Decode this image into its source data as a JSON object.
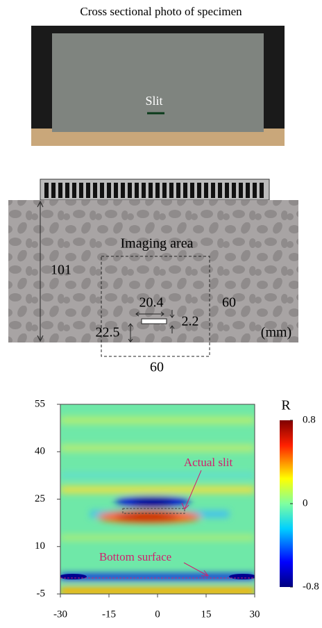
{
  "photo": {
    "caption": "Cross sectional photo of specimen",
    "slit_label": "Slit"
  },
  "diagram": {
    "imaging_area": "Imaging area",
    "height": "101",
    "width_right": "60",
    "slit_width": "20.4",
    "slit_height": "2.2",
    "slit_depth": "22.5",
    "unit": "(mm)",
    "width_bottom": "60"
  },
  "chart_data": {
    "type": "heatmap",
    "xlim": [
      -30,
      30
    ],
    "xticks": [
      -30,
      -15,
      0,
      15,
      30
    ],
    "ylim": [
      -5,
      55
    ],
    "yticks": [
      -5,
      10,
      25,
      40,
      55
    ],
    "colorbar": {
      "label": "R",
      "lim": [
        -0.8,
        0.8
      ],
      "ticks": [
        -0.8,
        0,
        0.8
      ]
    },
    "annotations": [
      "Actual slit",
      "Bottom surface"
    ]
  }
}
